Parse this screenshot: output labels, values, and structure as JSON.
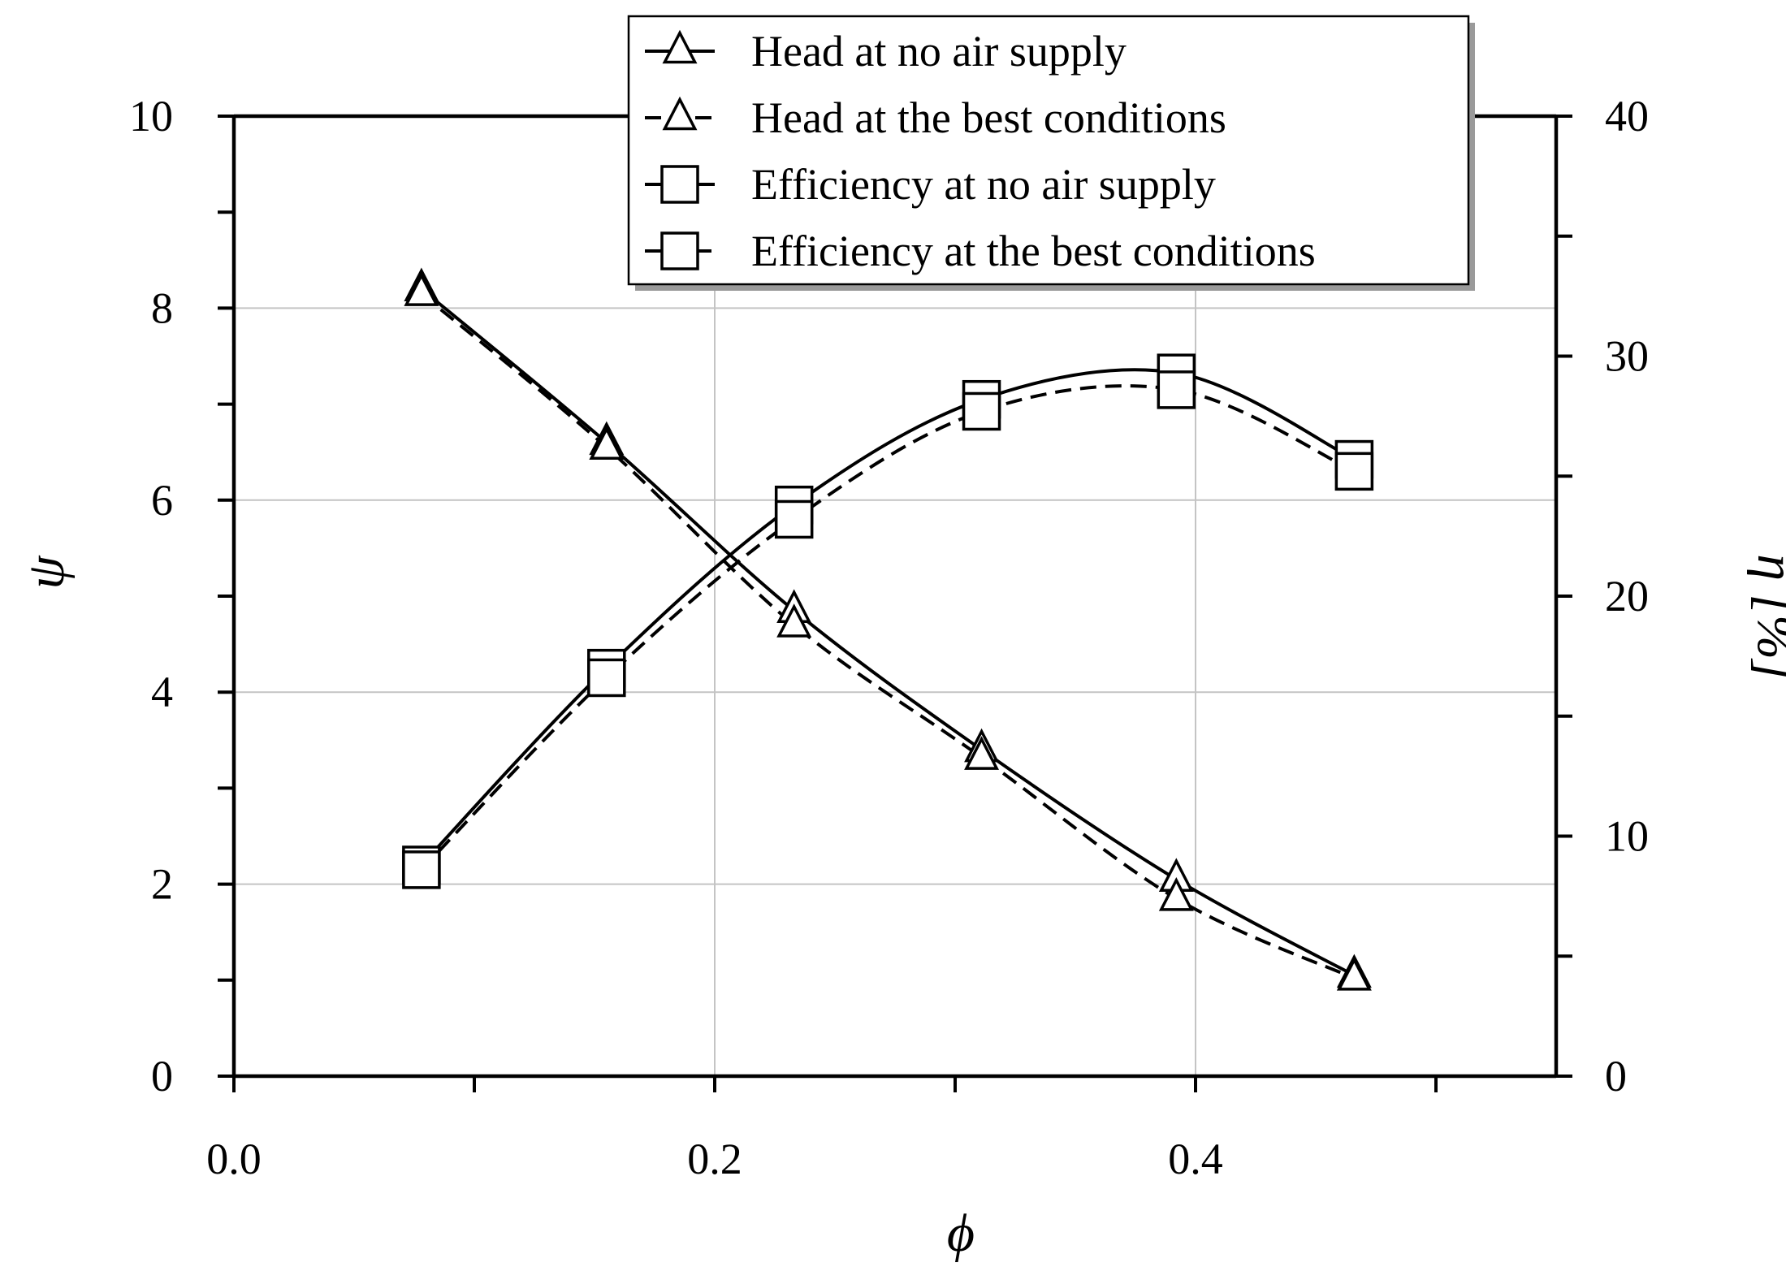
{
  "chart_data": {
    "type": "line",
    "xlabel": "ϕ",
    "ylabel": "ψ",
    "y2label": "η [%]",
    "xlim": [
      0.0,
      0.55
    ],
    "ylim": [
      0,
      10
    ],
    "y2lim": [
      0,
      40
    ],
    "xticks": [
      {
        "v": 0.0,
        "label": "0.0"
      },
      {
        "v": 0.2,
        "label": "0.2"
      },
      {
        "v": 0.4,
        "label": "0.4"
      }
    ],
    "xminor": [
      0.1,
      0.3,
      0.5
    ],
    "yticks": [
      {
        "v": 0,
        "label": "0"
      },
      {
        "v": 2,
        "label": "2"
      },
      {
        "v": 4,
        "label": "4"
      },
      {
        "v": 6,
        "label": "6"
      },
      {
        "v": 8,
        "label": "8"
      },
      {
        "v": 10,
        "label": "10"
      }
    ],
    "yminor": [
      1,
      3,
      5,
      7,
      9
    ],
    "y2ticks": [
      {
        "v": 0,
        "label": "0"
      },
      {
        "v": 10,
        "label": "10"
      },
      {
        "v": 20,
        "label": "20"
      },
      {
        "v": 30,
        "label": "30"
      },
      {
        "v": 40,
        "label": "40"
      }
    ],
    "y2minor": [
      5,
      15,
      25,
      35
    ],
    "grid": true,
    "legend_position": "top-center",
    "series": [
      {
        "name": "Head at no air supply",
        "axis": "left",
        "marker": "triangle",
        "line": "solid",
        "x": [
          0.078,
          0.155,
          0.233,
          0.311,
          0.392,
          0.466
        ],
        "y": [
          8.2,
          6.6,
          4.85,
          3.4,
          2.05,
          1.05
        ]
      },
      {
        "name": "Head at the best conditions",
        "axis": "left",
        "marker": "triangle",
        "line": "dashed",
        "x": [
          0.078,
          0.155,
          0.233,
          0.311,
          0.392,
          0.466
        ],
        "y": [
          8.15,
          6.55,
          4.7,
          3.32,
          1.85,
          1.02
        ]
      },
      {
        "name": "Efficiency at no air supply",
        "axis": "right",
        "marker": "square",
        "line": "solid",
        "x": [
          0.078,
          0.155,
          0.233,
          0.311,
          0.392,
          0.466
        ],
        "y": [
          8.8,
          17.0,
          23.8,
          28.2,
          29.3,
          25.7
        ]
      },
      {
        "name": "Efficiency at the best conditions",
        "axis": "right",
        "marker": "square",
        "line": "dashed",
        "x": [
          0.078,
          0.155,
          0.233,
          0.311,
          0.392,
          0.466
        ],
        "y": [
          8.6,
          16.6,
          23.2,
          27.7,
          28.6,
          25.2
        ]
      }
    ]
  }
}
